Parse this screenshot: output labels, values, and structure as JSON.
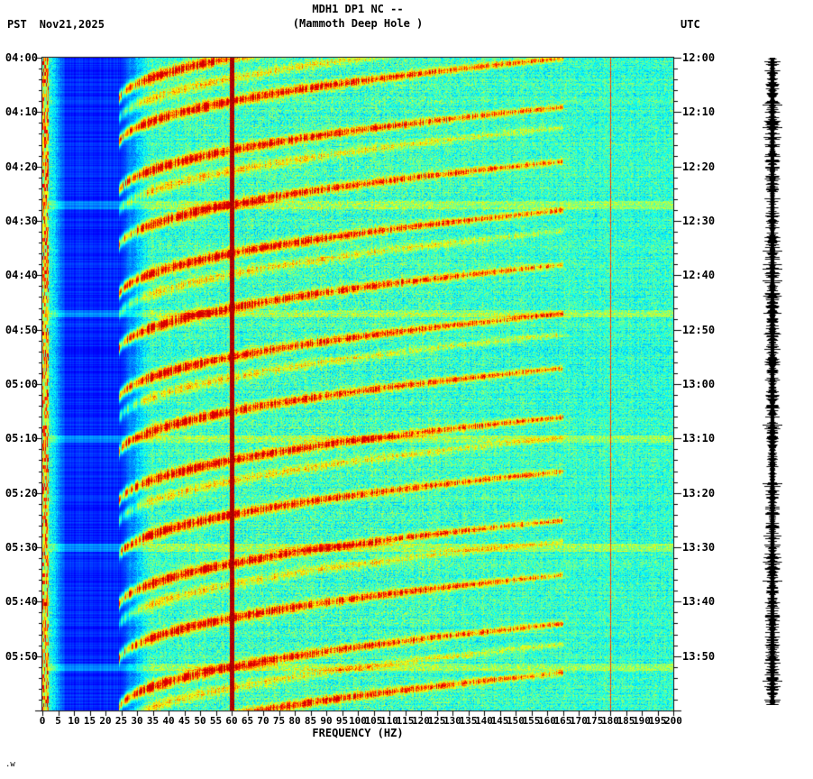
{
  "header": {
    "title": "MDH1 DP1 NC --",
    "subtitle": "(Mammoth Deep Hole )",
    "pst_label": "PST",
    "date": "Nov21,2025",
    "utc_label": "UTC"
  },
  "axes": {
    "x": {
      "label": "FREQUENCY (HZ)",
      "tick_labels": [
        "0",
        "5",
        "10",
        "15",
        "20",
        "25",
        "30",
        "35",
        "40",
        "45",
        "50",
        "55",
        "60",
        "65",
        "70",
        "75",
        "80",
        "85",
        "90",
        "95",
        "100",
        "105",
        "110",
        "115",
        "120",
        "125",
        "130",
        "135",
        "140",
        "145",
        "150",
        "155",
        "160",
        "165",
        "170",
        "175",
        "180",
        "185",
        "190",
        "195",
        "200"
      ]
    },
    "left_time_labels": [
      "04:00",
      "04:10",
      "04:20",
      "04:30",
      "04:40",
      "04:50",
      "05:00",
      "05:10",
      "05:20",
      "05:30",
      "05:40",
      "05:50"
    ],
    "right_time_labels": [
      "12:00",
      "12:10",
      "12:20",
      "12:30",
      "12:40",
      "12:50",
      "13:00",
      "13:10",
      "13:20",
      "13:30",
      "13:40",
      "13:50"
    ]
  },
  "footer": {
    "mark": ".w"
  },
  "chart_data": {
    "type": "heatmap",
    "subtype": "seismic-spectrogram",
    "title": "MDH1 DP1 NC --",
    "subtitle": "(Mammoth Deep Hole )",
    "xlabel": "FREQUENCY (HZ)",
    "x_range_hz": [
      0,
      200
    ],
    "x_tick_step_hz": 5,
    "colormap": "jet",
    "background_level": 0.42,
    "time_axis": {
      "left_timezone": "PST",
      "right_timezone": "UTC",
      "date": "Nov21,2025",
      "left_start": "04:00",
      "right_start": "12:00",
      "span_min": 120,
      "tick_interval_min": 10,
      "minor_tick_min": 2
    },
    "features": {
      "mains_line_hz": 60,
      "secondary_line_hz": 180,
      "low_freq_blue_band_hz": [
        3,
        34
      ],
      "left_edge_noise_hz": [
        0,
        1.8
      ],
      "bright_rows_minutes": [
        27,
        47,
        70,
        90,
        112
      ],
      "tremor_glides": {
        "start_minutes": [
          -8,
          0,
          9,
          19,
          28,
          38,
          47,
          57,
          66,
          76,
          85,
          95,
          104,
          113
        ],
        "freq_range_hz": [
          24,
          165
        ],
        "duration_min": 16,
        "overtone_offset_min": 3.8
      }
    },
    "seismogram_strip": {
      "present": true,
      "color": "#000000"
    }
  }
}
